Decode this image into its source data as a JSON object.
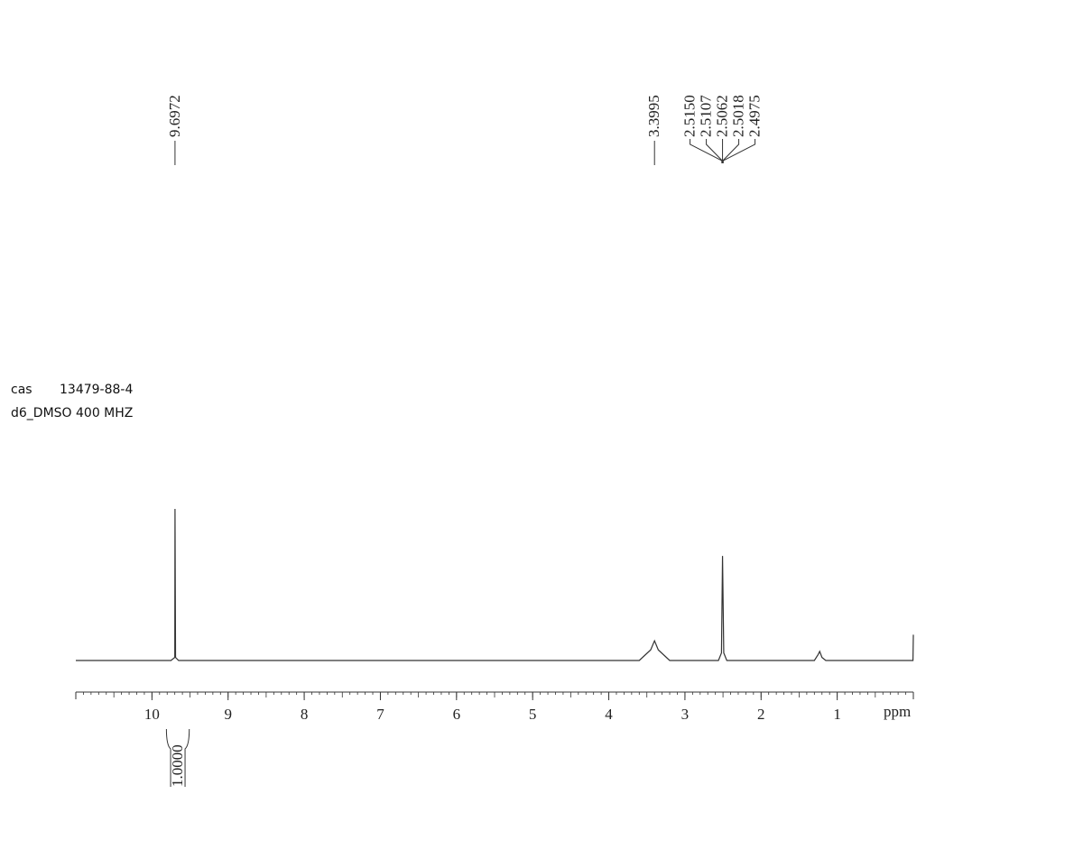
{
  "chart_data": {
    "type": "line",
    "notes_text": [
      "cas",
      "13479-88-4",
      "d6_DMSO  400 MHZ"
    ],
    "x_label": "ppm",
    "xlim": [
      11,
      0
    ],
    "xticks": [
      10,
      9,
      8,
      7,
      6,
      5,
      4,
      3,
      2,
      1
    ],
    "minor_tick_step": 0.1,
    "ylim": [
      0,
      100
    ],
    "x": [
      11,
      9.75,
      9.7,
      9.6972,
      9.69,
      9.65,
      3.6,
      3.45,
      3.3995,
      3.35,
      3.2,
      2.56,
      2.52,
      2.5062,
      2.49,
      2.45,
      1.3,
      1.25,
      1.23,
      1.2,
      1.15,
      0.02,
      0.005,
      0
    ],
    "series": [
      {
        "color": "#444444",
        "values": [
          0,
          0,
          2,
          100,
          2,
          0,
          0,
          7,
          13,
          7,
          0,
          0,
          5,
          69,
          5,
          0,
          0,
          4,
          6,
          2,
          0,
          0,
          0,
          17
        ]
      }
    ],
    "peak_groups": [
      [
        9.6972
      ],
      [
        3.3995
      ],
      [
        {
          "value": 2.515,
          "label": "2.5150"
        },
        2.5107,
        2.5062,
        2.5018,
        2.4975
      ]
    ],
    "integrals": [
      {
        "range": [
          9.81,
          9.51
        ],
        "value": 1,
        "label": "1.0000"
      }
    ]
  }
}
